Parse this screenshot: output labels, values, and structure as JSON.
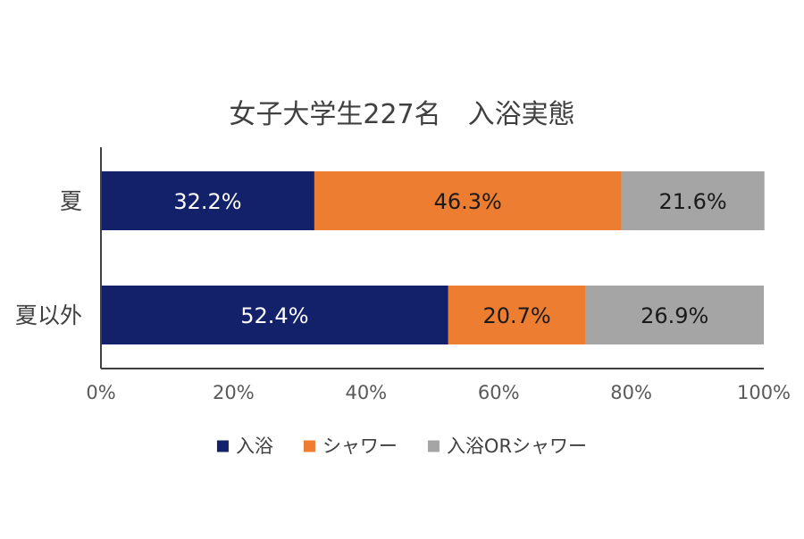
{
  "chart_data": {
    "type": "bar",
    "orientation": "horizontal",
    "stacked": true,
    "title": "女子大学生227名　入浴実態",
    "categories": [
      "夏",
      "夏以外"
    ],
    "series": [
      {
        "name": "入浴",
        "values": [
          32.2,
          52.4
        ],
        "labels": [
          "32.2%",
          "52.4%"
        ],
        "color": "#13216a",
        "label_color": "#ffffff"
      },
      {
        "name": "シャワー",
        "values": [
          46.3,
          20.7
        ],
        "labels": [
          "46.3%",
          "20.7%"
        ],
        "color": "#ed7d31",
        "label_color": "#1a1a1a"
      },
      {
        "name": "入浴ORシャワー",
        "values": [
          21.6,
          26.9
        ],
        "labels": [
          "21.6%",
          "26.9%"
        ],
        "color": "#a5a5a5",
        "label_color": "#1a1a1a"
      }
    ],
    "xlim": [
      0,
      100
    ],
    "xticks": [
      0,
      20,
      40,
      60,
      80,
      100
    ],
    "xtick_labels": [
      "0%",
      "20%",
      "40%",
      "60%",
      "80%",
      "100%"
    ],
    "grid": false,
    "legend": "bottom"
  }
}
